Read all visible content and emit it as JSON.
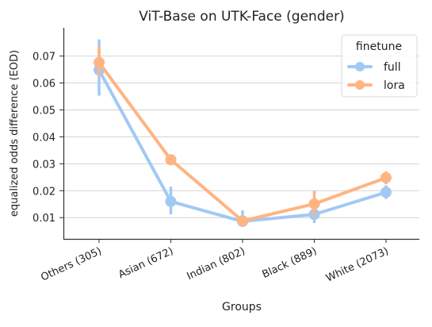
{
  "chart_data": {
    "type": "line",
    "title": "ViT-Base on UTK-Face (gender)",
    "xlabel": "Groups",
    "ylabel": "equalized odds difference (EOD)",
    "categories": [
      "Others (305)",
      "Asian (672)",
      "Indian (802)",
      "Black (889)",
      "White (2073)"
    ],
    "yticks": [
      "0.01",
      "0.02",
      "0.03",
      "0.04",
      "0.05",
      "0.06",
      "0.07"
    ],
    "ylim": [
      0.0021,
      0.0805
    ],
    "grid": "horizontal",
    "legend": {
      "title": "finetune",
      "placement": "top-right"
    },
    "series": [
      {
        "name": "full",
        "color": "#a1c9f4",
        "values": [
          0.0648,
          0.016,
          0.0086,
          0.0112,
          0.0194
        ],
        "ci": [
          [
            0.0553,
            0.0762
          ],
          [
            0.0112,
            0.0215
          ],
          [
            0.0066,
            0.0127
          ],
          [
            0.008,
            0.0144
          ],
          [
            0.0169,
            0.022
          ]
        ]
      },
      {
        "name": "lora",
        "color": "#ffb482",
        "values": [
          0.0676,
          0.0315,
          0.0088,
          0.0151,
          0.0248
        ],
        "ci": [
          [
            0.0625,
            0.0735
          ],
          [
            0.0297,
            0.0333
          ],
          [
            0.0068,
            0.0108
          ],
          [
            0.0103,
            0.0199
          ],
          [
            0.0224,
            0.0272
          ]
        ]
      }
    ]
  }
}
